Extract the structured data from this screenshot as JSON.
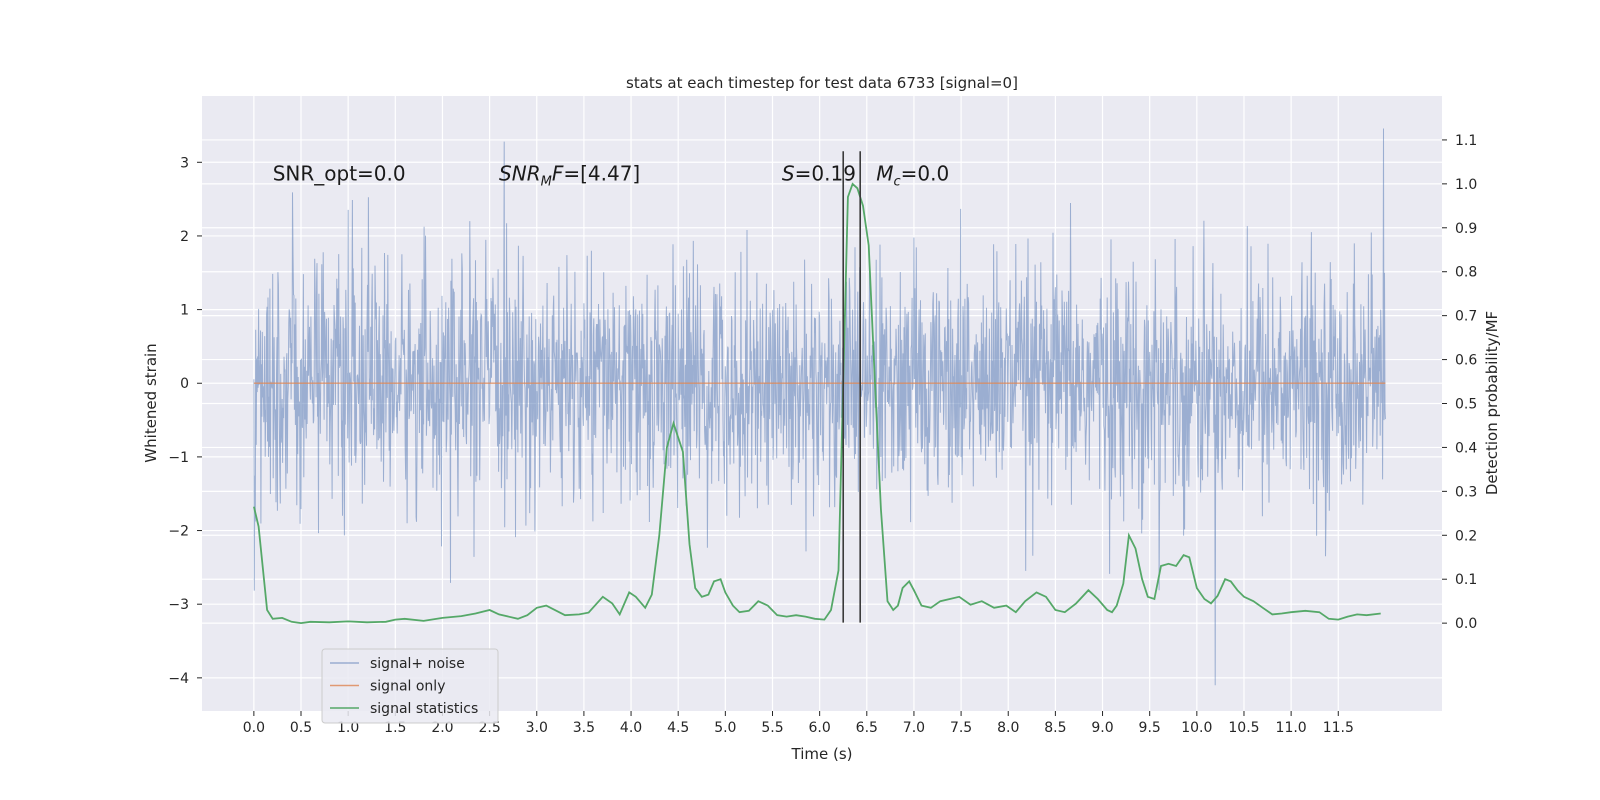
{
  "chart_data": {
    "type": "line",
    "title": "stats at each timestep for test data 6733 [signal=0]",
    "xlabel": "Time (s)",
    "ylabel": "Whitened strain",
    "y2label": "Detection probability/MF",
    "xlim": [
      -0.55,
      12.6
    ],
    "ylim": [
      -4.45,
      3.9
    ],
    "y2lim": [
      -0.2,
      1.2
    ],
    "x_ticks": [
      0.0,
      0.5,
      1.0,
      1.5,
      2.0,
      2.5,
      3.0,
      3.5,
      4.0,
      4.5,
      5.0,
      5.5,
      6.0,
      6.5,
      7.0,
      7.5,
      8.0,
      8.5,
      9.0,
      9.5,
      10.0,
      10.5,
      11.0,
      11.5
    ],
    "x_tick_labels": [
      "0.0",
      "0.5",
      "1.0",
      "1.5",
      "2.0",
      "2.5",
      "3.0",
      "3.5",
      "4.0",
      "4.5",
      "5.0",
      "5.5",
      "6.0",
      "6.5",
      "7.0",
      "7.5",
      "8.0",
      "8.5",
      "9.0",
      "9.5",
      "10.0",
      "10.5",
      "11.0",
      "11.5"
    ],
    "y_ticks": [
      -4,
      -3,
      -2,
      -1,
      0,
      1,
      2,
      3
    ],
    "y_tick_labels": [
      "−4",
      "−3",
      "−2",
      "−1",
      "0",
      "1",
      "2",
      "3"
    ],
    "y2_ticks": [
      0.0,
      0.1,
      0.2,
      0.3,
      0.4,
      0.5,
      0.6,
      0.7,
      0.8,
      0.9,
      1.0,
      1.1
    ],
    "y2_tick_labels": [
      "0.0",
      "0.1",
      "0.2",
      "0.3",
      "0.4",
      "0.5",
      "0.6",
      "0.7",
      "0.8",
      "0.9",
      "1.0",
      "1.1"
    ],
    "grid": true,
    "legend_position": "bottom-left",
    "annotations": [
      {
        "text": "SNR_opt=0.0",
        "x": 0.2,
        "y": 2.85,
        "italic": false
      },
      {
        "text": "SNR_MF=[4.47]",
        "x": 2.6,
        "y": 2.85,
        "italic": true,
        "html": "<tspan font-style='italic'>SNR</tspan><tspan font-style='italic' font-size='13' dy='5'>M</tspan><tspan font-style='italic' dy='-5'>F</tspan><tspan>=[4.47]</tspan>"
      },
      {
        "text": "S=0.19",
        "x": 5.6,
        "y": 2.85,
        "italic": true,
        "html": "<tspan font-style='italic'>S</tspan><tspan>=0.19</tspan>"
      },
      {
        "text": "M_c=0.0",
        "x": 6.6,
        "y": 2.85,
        "italic": true,
        "html": "<tspan font-style='italic'>M</tspan><tspan font-style='italic' font-size='13' dy='5'>c</tspan><tspan dy='-5'>=0.0</tspan>"
      }
    ],
    "vlines": [
      6.25,
      6.43
    ],
    "vline_range": [
      -3.25,
      3.15
    ],
    "series": [
      {
        "name": "signal+ noise",
        "color": "#4c72b0",
        "opacity": 0.5,
        "axis": "left",
        "x_range": [
          0.0,
          12.0
        ],
        "typical_range": [
          -1.6,
          1.6
        ],
        "max": 3.6,
        "min": -4.1
      },
      {
        "name": "signal only",
        "color": "#dd8452",
        "axis": "left",
        "x": [
          0.0,
          12.0
        ],
        "values": [
          0.0,
          0.0
        ]
      },
      {
        "name": "signal statistics",
        "color": "#55a868",
        "axis": "right",
        "x": [
          0.0,
          0.05,
          0.14,
          0.2,
          0.3,
          0.4,
          0.5,
          0.6,
          0.8,
          1.0,
          1.2,
          1.4,
          1.5,
          1.6,
          1.8,
          2.0,
          2.2,
          2.35,
          2.5,
          2.6,
          2.8,
          2.9,
          3.0,
          3.1,
          3.3,
          3.45,
          3.55,
          3.7,
          3.8,
          3.88,
          3.98,
          4.05,
          4.15,
          4.22,
          4.3,
          4.38,
          4.45,
          4.55,
          4.62,
          4.68,
          4.75,
          4.82,
          4.88,
          4.95,
          5.0,
          5.08,
          5.15,
          5.25,
          5.35,
          5.45,
          5.55,
          5.65,
          5.75,
          5.85,
          5.95,
          6.05,
          6.12,
          6.2,
          6.3,
          6.35,
          6.4,
          6.46,
          6.52,
          6.58,
          6.65,
          6.72,
          6.78,
          6.83,
          6.88,
          6.95,
          7.0,
          7.08,
          7.18,
          7.28,
          7.38,
          7.48,
          7.6,
          7.72,
          7.85,
          7.98,
          8.08,
          8.18,
          8.3,
          8.4,
          8.5,
          8.6,
          8.72,
          8.85,
          8.95,
          9.05,
          9.1,
          9.15,
          9.22,
          9.28,
          9.35,
          9.42,
          9.48,
          9.55,
          9.62,
          9.7,
          9.78,
          9.86,
          9.92,
          10.0,
          10.08,
          10.15,
          10.22,
          10.3,
          10.36,
          10.43,
          10.5,
          10.6,
          10.7,
          10.8,
          10.9,
          11.0,
          11.15,
          11.3,
          11.4,
          11.5,
          11.6,
          11.7,
          11.8,
          11.95
        ],
        "values": [
          0.265,
          0.22,
          0.03,
          0.01,
          0.012,
          0.003,
          0.0,
          0.003,
          0.002,
          0.004,
          0.002,
          0.003,
          0.008,
          0.01,
          0.005,
          0.012,
          0.016,
          0.022,
          0.03,
          0.02,
          0.01,
          0.018,
          0.035,
          0.04,
          0.018,
          0.02,
          0.024,
          0.06,
          0.045,
          0.02,
          0.07,
          0.06,
          0.035,
          0.065,
          0.2,
          0.4,
          0.455,
          0.39,
          0.18,
          0.08,
          0.06,
          0.065,
          0.095,
          0.1,
          0.07,
          0.04,
          0.025,
          0.028,
          0.05,
          0.04,
          0.018,
          0.015,
          0.018,
          0.015,
          0.01,
          0.008,
          0.03,
          0.12,
          0.97,
          1.0,
          0.99,
          0.95,
          0.86,
          0.58,
          0.26,
          0.05,
          0.03,
          0.04,
          0.08,
          0.095,
          0.075,
          0.04,
          0.035,
          0.05,
          0.055,
          0.06,
          0.042,
          0.05,
          0.035,
          0.04,
          0.025,
          0.05,
          0.07,
          0.06,
          0.03,
          0.025,
          0.045,
          0.075,
          0.055,
          0.03,
          0.025,
          0.04,
          0.09,
          0.2,
          0.17,
          0.1,
          0.06,
          0.055,
          0.13,
          0.135,
          0.13,
          0.155,
          0.15,
          0.08,
          0.055,
          0.045,
          0.062,
          0.1,
          0.095,
          0.075,
          0.06,
          0.05,
          0.035,
          0.02,
          0.022,
          0.025,
          0.028,
          0.025,
          0.01,
          0.008,
          0.015,
          0.02,
          0.018,
          0.022
        ]
      }
    ]
  }
}
